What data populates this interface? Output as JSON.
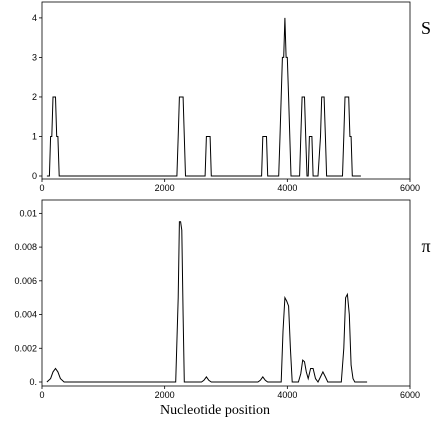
{
  "chart_data": [
    {
      "type": "line",
      "side_label": "S",
      "xlabel": "",
      "xlim": [
        0,
        6000
      ],
      "ylim": [
        0,
        4.2
      ],
      "x_ticks": [
        0,
        2000,
        4000,
        6000
      ],
      "x_tick_labels": [
        "0",
        "2000",
        "4000",
        "6000"
      ],
      "y_ticks": [
        0,
        1,
        2,
        3,
        4
      ],
      "y_tick_labels": [
        "0",
        "1",
        "2",
        "3",
        "4"
      ],
      "series": [
        {
          "x": [
            80,
            120,
            140,
            160,
            180,
            200,
            220,
            240,
            260,
            280,
            300,
            320,
            340,
            360,
            2200,
            2220,
            2240,
            2260,
            2280,
            2300,
            2320,
            2340,
            2360,
            2640,
            2660,
            2680,
            2700,
            2720,
            2740,
            2760,
            2780,
            3560,
            3580,
            3600,
            3620,
            3640,
            3660,
            3680,
            3700,
            3860,
            3880,
            3900,
            3920,
            3940,
            3960,
            3980,
            4000,
            4020,
            4040,
            4060,
            4080,
            4100,
            4120,
            4140,
            4200,
            4220,
            4240,
            4260,
            4280,
            4300,
            4320,
            4340,
            4360,
            4380,
            4400,
            4420,
            4440,
            4460,
            4480,
            4500,
            4540,
            4560,
            4580,
            4600,
            4620,
            4640,
            4660,
            4680,
            4700,
            4720,
            4740,
            4900,
            4920,
            4940,
            4960,
            4980,
            5000,
            5020,
            5040,
            5060,
            5080,
            5100,
            5120,
            5200
          ],
          "y": [
            0,
            0,
            1,
            1,
            2,
            2,
            2,
            1,
            1,
            0,
            0,
            0,
            0,
            0,
            0,
            1,
            2,
            2,
            2,
            2,
            1,
            0,
            0,
            0,
            0,
            1,
            1,
            1,
            1,
            0,
            0,
            0,
            0,
            1,
            1,
            1,
            1,
            0,
            0,
            0,
            1,
            2,
            3,
            3,
            4,
            3,
            3,
            2,
            1,
            0,
            0,
            0,
            0,
            0,
            0,
            1,
            2,
            2,
            2,
            1,
            0,
            0,
            1,
            1,
            1,
            0,
            0,
            0,
            0,
            0,
            1,
            2,
            2,
            2,
            1,
            0,
            0,
            0,
            0,
            0,
            0,
            0,
            1,
            2,
            2,
            2,
            2,
            1,
            1,
            0,
            0,
            0,
            0,
            0
          ]
        }
      ]
    },
    {
      "type": "line",
      "side_label": "π",
      "xlabel": "Nucleotide position",
      "xlim": [
        0,
        6000
      ],
      "ylim": [
        0,
        0.0102
      ],
      "x_ticks": [
        0,
        2000,
        4000,
        6000
      ],
      "x_tick_labels": [
        "0",
        "2000",
        "4000",
        "6000"
      ],
      "y_ticks": [
        0,
        0.002,
        0.004,
        0.006,
        0.008,
        0.01
      ],
      "y_tick_labels": [
        "0.",
        "0.002",
        "0.004",
        "0.006",
        "0.008",
        "0.01"
      ],
      "series": [
        {
          "x": [
            80,
            140,
            180,
            220,
            260,
            300,
            360,
            2180,
            2220,
            2240,
            2260,
            2280,
            2300,
            2320,
            2340,
            2600,
            2640,
            2680,
            2720,
            2760,
            3520,
            3560,
            3600,
            3640,
            3680,
            3900,
            3930,
            3960,
            3990,
            4020,
            4050,
            4080,
            4110,
            4180,
            4220,
            4250,
            4280,
            4310,
            4340,
            4380,
            4420,
            4460,
            4500,
            4540,
            4580,
            4620,
            4660,
            4700,
            4880,
            4920,
            4950,
            4980,
            5010,
            5040,
            5070,
            5100,
            5160,
            5300
          ],
          "y": [
            0,
            0.0002,
            0.0006,
            0.0008,
            0.0006,
            0.0002,
            0,
            0,
            0.005,
            0.0095,
            0.0095,
            0.009,
            0.004,
            0,
            0,
            0,
            0.0001,
            0.0003,
            0.0001,
            0,
            0,
            0.0001,
            0.0003,
            0.0001,
            0,
            0,
            0.003,
            0.005,
            0.0048,
            0.0045,
            0.002,
            0,
            0,
            0,
            0.0005,
            0.0013,
            0.0012,
            0.0006,
            0.0002,
            0.0008,
            0.0008,
            0.0002,
            0,
            0.0003,
            0.0006,
            0.0003,
            0,
            0,
            0,
            0.002,
            0.005,
            0.0052,
            0.004,
            0.001,
            0.0002,
            0,
            0,
            0
          ]
        }
      ]
    }
  ]
}
